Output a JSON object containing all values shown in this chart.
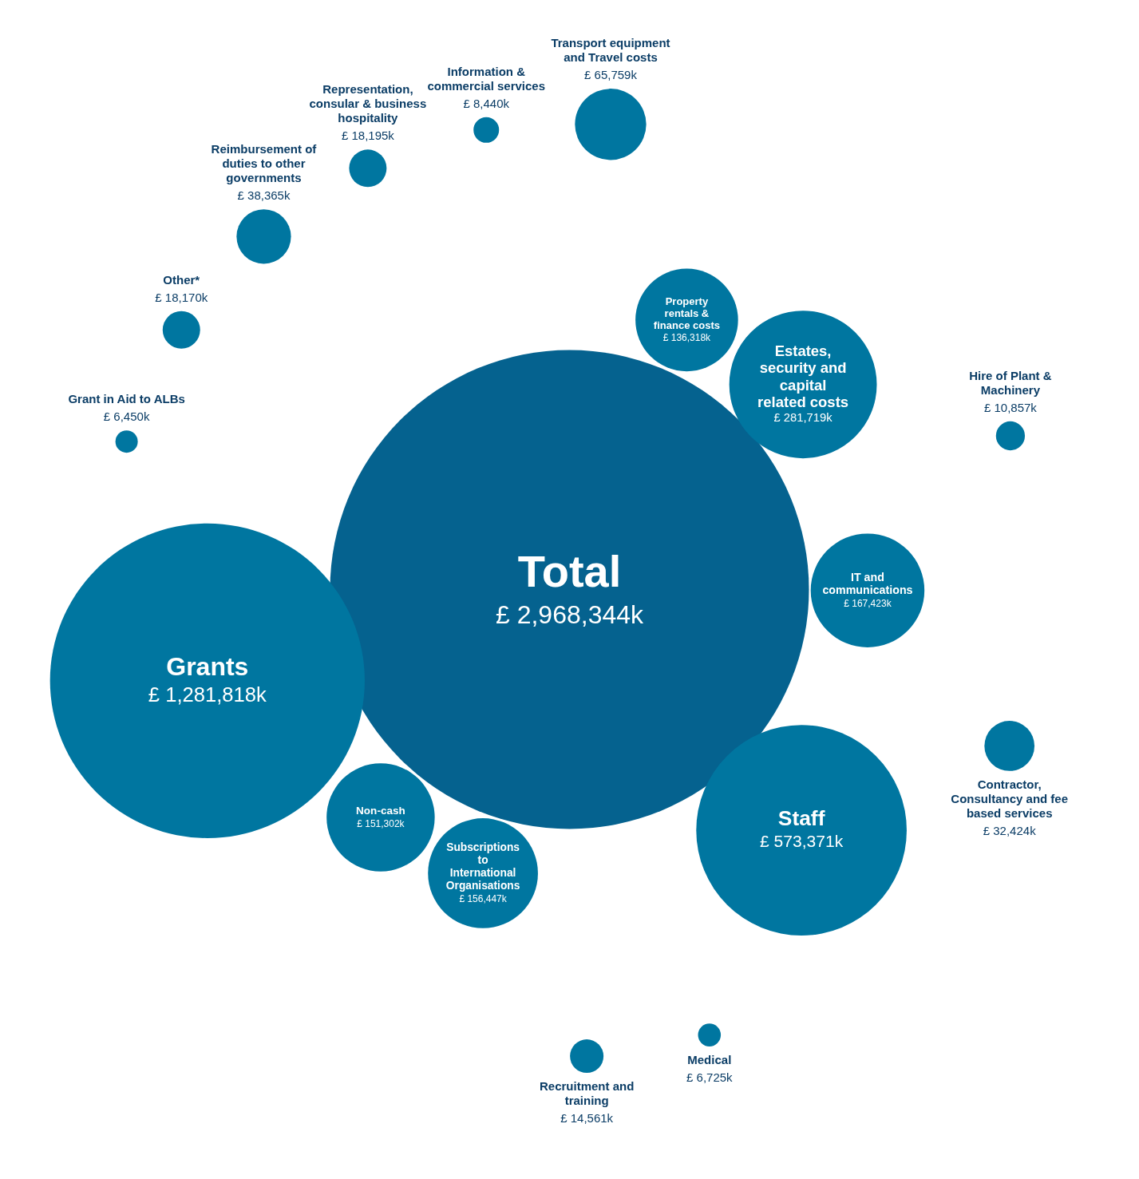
{
  "chart_data": {
    "type": "other",
    "categories": [
      "Total",
      "Information & commercial services",
      "Transport equipment and Travel costs",
      "Property rentals & finance costs",
      "Estates, security and capital related costs",
      "Hire of Plant & Machinery",
      "IT and communications",
      "Contractor, Consultancy and fee based services",
      "Staff",
      "Medical",
      "Recruitment and training",
      "Subscriptions to International Organisations",
      "Non-cash",
      "Grants",
      "Grant in Aid to ALBs",
      "Other*",
      "Reimbursement of duties to other governments",
      "Representation, consular & business hospitality"
    ],
    "values": [
      2968344,
      8440,
      65759,
      136318,
      281719,
      10857,
      167423,
      32424,
      573371,
      6725,
      14561,
      156447,
      151302,
      1281818,
      6450,
      18170,
      38365,
      18195
    ],
    "value_labels": [
      "£ 2,968,344k",
      "£ 8,440k",
      "£ 65,759k",
      "£ 136,318k",
      "£ 281,719k",
      "£ 10,857k",
      "£ 167,423k",
      "£ 32,424k",
      "£ 573,371k",
      "£ 6,725k",
      "£ 14,561k",
      "£ 156,447k",
      "£ 151,302k",
      "£ 1,281,818k",
      "£ 6,450k",
      "£ 18,170k",
      "£ 38,365k",
      "£ 18,195k"
    ],
    "colors": [
      "#05628f",
      "#0076a0",
      "#0076a0",
      "#0076a0",
      "#0076a0",
      "#0076a0",
      "#0076a0",
      "#0076a0",
      "#0076a0",
      "#0076a0",
      "#0076a0",
      "#0076a0",
      "#0076a0",
      "#0076a0",
      "#0076a0",
      "#0076a0",
      "#0076a0",
      "#0076a0"
    ]
  }
}
